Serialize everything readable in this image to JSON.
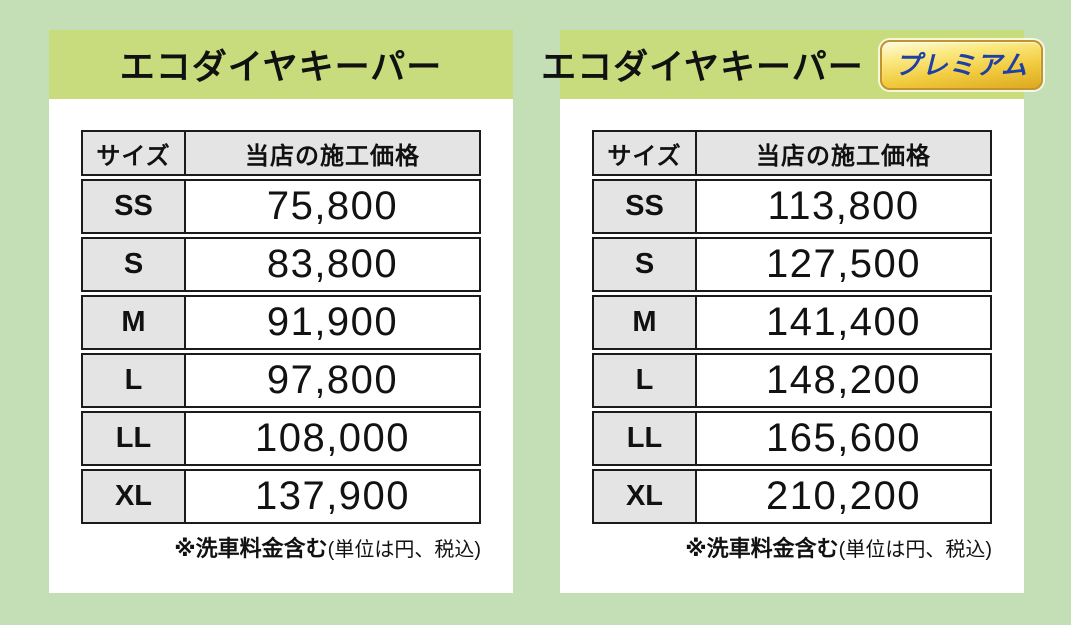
{
  "page": {
    "background_color": "#c4deb6"
  },
  "table_headers": {
    "size": "サイズ",
    "price": "当店の施工価格"
  },
  "footnote": {
    "bold": "※洗車料金含む",
    "normal": "(単位は円、税込)"
  },
  "panels": [
    {
      "title": "エコダイヤキーパー",
      "rows": [
        {
          "size": "SS",
          "price": "75,800"
        },
        {
          "size": "S",
          "price": "83,800"
        },
        {
          "size": "M",
          "price": "91,900"
        },
        {
          "size": "L",
          "price": "97,800"
        },
        {
          "size": "LL",
          "price": "108,000"
        },
        {
          "size": "XL",
          "price": "137,900"
        }
      ]
    },
    {
      "title": "エコダイヤキーパー",
      "badge": "プレミアム",
      "rows": [
        {
          "size": "SS",
          "price": "113,800"
        },
        {
          "size": "S",
          "price": "127,500"
        },
        {
          "size": "M",
          "price": "141,400"
        },
        {
          "size": "L",
          "price": "148,200"
        },
        {
          "size": "LL",
          "price": "165,600"
        },
        {
          "size": "XL",
          "price": "210,200"
        }
      ]
    }
  ],
  "colors": {
    "band": "#c9dc7d",
    "cell_gray": "#e4e4e4",
    "table_border": "#1b1b1b",
    "badge_gold_top": "#fffbe2",
    "badge_gold_bottom": "#dca81f",
    "badge_border": "#c19430",
    "badge_text_blue": "#1d3fa6",
    "title_text": "#111111"
  }
}
